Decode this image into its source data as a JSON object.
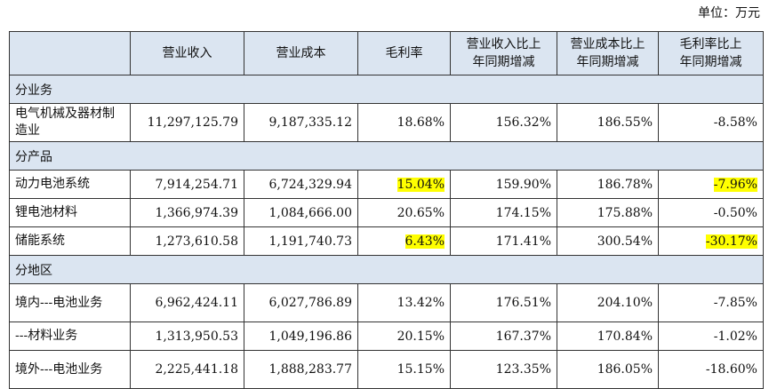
{
  "unit_label": "单位：万元",
  "highlight_color": "#ffff00",
  "header_bg": "#dbe5f1",
  "headers": [
    "",
    "营业收入",
    "营业成本",
    "毛利率",
    "营业收入比上年同期增减",
    "营业成本比上年同期增减",
    "毛利率比上年同期增减"
  ],
  "header_display": [
    "",
    "营业收入",
    "营业成本",
    "毛利率",
    "营业收入比上\n年同期增减",
    "营业成本比上\n年同期增减",
    "毛利率比上\n年同期增减"
  ],
  "sections": [
    {
      "title": "分业务",
      "rows": [
        {
          "label": "电气机械及器材制造业",
          "revenue": "11,297,125.79",
          "cost": "9,187,335.12",
          "margin": "18.68%",
          "rev_change": "156.32%",
          "cost_change": "186.55%",
          "margin_change": "-8.58%",
          "hl_margin": false,
          "hl_margin_change": false
        }
      ]
    },
    {
      "title": "分产品",
      "rows": [
        {
          "label": "动力电池系统",
          "revenue": "7,914,254.71",
          "cost": "6,724,329.94",
          "margin": "15.04%",
          "rev_change": "159.90%",
          "cost_change": "186.78%",
          "margin_change": "-7.96%",
          "hl_margin": true,
          "hl_margin_change": true
        },
        {
          "label": "锂电池材料",
          "revenue": "1,366,974.39",
          "cost": "1,084,666.00",
          "margin": "20.65%",
          "rev_change": "174.15%",
          "cost_change": "175.88%",
          "margin_change": "-0.50%",
          "hl_margin": false,
          "hl_margin_change": false
        },
        {
          "label": "储能系统",
          "revenue": "1,273,610.58",
          "cost": "1,191,740.73",
          "margin": "6.43%",
          "rev_change": "171.41%",
          "cost_change": "300.54%",
          "margin_change": "-30.17%",
          "hl_margin": true,
          "hl_margin_change": true
        }
      ]
    },
    {
      "title": "分地区",
      "rows": [
        {
          "label": "境内---电池业务",
          "revenue": "6,962,424.11",
          "cost": "6,027,786.89",
          "margin": "13.42%",
          "rev_change": "176.51%",
          "cost_change": "204.10%",
          "margin_change": "-7.85%",
          "hl_margin": false,
          "hl_margin_change": false
        },
        {
          "label": "---材料业务",
          "revenue": "1,313,950.53",
          "cost": "1,049,196.86",
          "margin": "20.15%",
          "rev_change": "167.37%",
          "cost_change": "170.84%",
          "margin_change": "-1.02%",
          "hl_margin": false,
          "hl_margin_change": false
        },
        {
          "label": "境外---电池业务",
          "revenue": "2,225,441.18",
          "cost": "1,888,283.77",
          "margin": "15.15%",
          "rev_change": "123.35%",
          "cost_change": "186.05%",
          "margin_change": "-18.60%",
          "hl_margin": false,
          "hl_margin_change": false
        }
      ]
    }
  ]
}
